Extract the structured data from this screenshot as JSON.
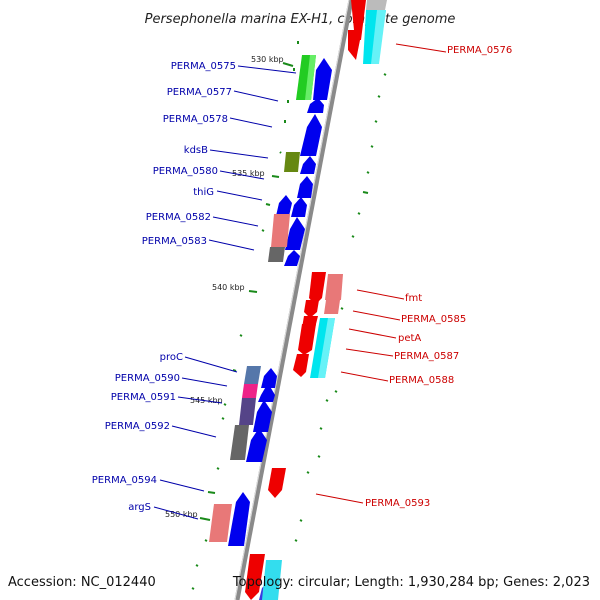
{
  "title": "Persephonella marina EX-H1, complete genome",
  "footer": {
    "accession": "Accession: NC_012440",
    "summary": "Topology: circular; Length: 1,930,284 bp; Genes: 2,023"
  },
  "colors": {
    "backbone": "#8a8a8a",
    "forward_gene": "#0000ee",
    "reverse_gene": "#ee0000",
    "label_blue": "#0000aa",
    "label_red": "#cc0000",
    "gc_tick": "#1a8a1a"
  },
  "scale_marks": [
    "530 kbp",
    "535 kbp",
    "540 kbp",
    "545 kbp",
    "550 kbp"
  ],
  "left_labels": [
    "PERMA_0575",
    "PERMA_0577",
    "PERMA_0578",
    "kdsB",
    "PERMA_0580",
    "thiG",
    "PERMA_0582",
    "PERMA_0583",
    "proC",
    "PERMA_0590",
    "PERMA_0591",
    "PERMA_0592",
    "PERMA_0594",
    "argS"
  ],
  "right_labels": [
    "PERMA_0576",
    "fmt",
    "PERMA_0585",
    "petA",
    "PERMA_0587",
    "PERMA_0588",
    "PERMA_0593"
  ]
}
